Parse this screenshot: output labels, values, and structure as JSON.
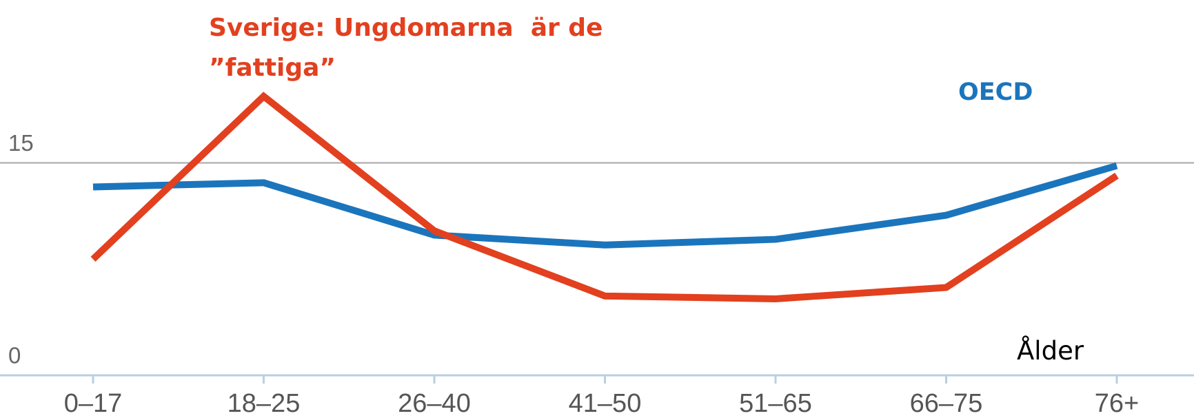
{
  "chart_data": {
    "type": "line",
    "x_label": "Ålder",
    "categories": [
      "0–17",
      "18–25",
      "26–40",
      "41–50",
      "51–65",
      "66–75",
      "76+"
    ],
    "series": [
      {
        "name": "OECD",
        "color": "#1b75bc",
        "values": [
          13.3,
          13.6,
          9.9,
          9.2,
          9.6,
          11.3,
          14.8
        ]
      },
      {
        "name": "Sverige: Ungdomarna  är de ”fattiga”",
        "color": "#e2401f",
        "values": [
          8.2,
          19.7,
          10.2,
          5.6,
          5.4,
          6.2,
          14.1
        ]
      }
    ],
    "ylim": [
      0,
      26.5
    ],
    "yticks": [
      0,
      15
    ],
    "grid": true
  }
}
